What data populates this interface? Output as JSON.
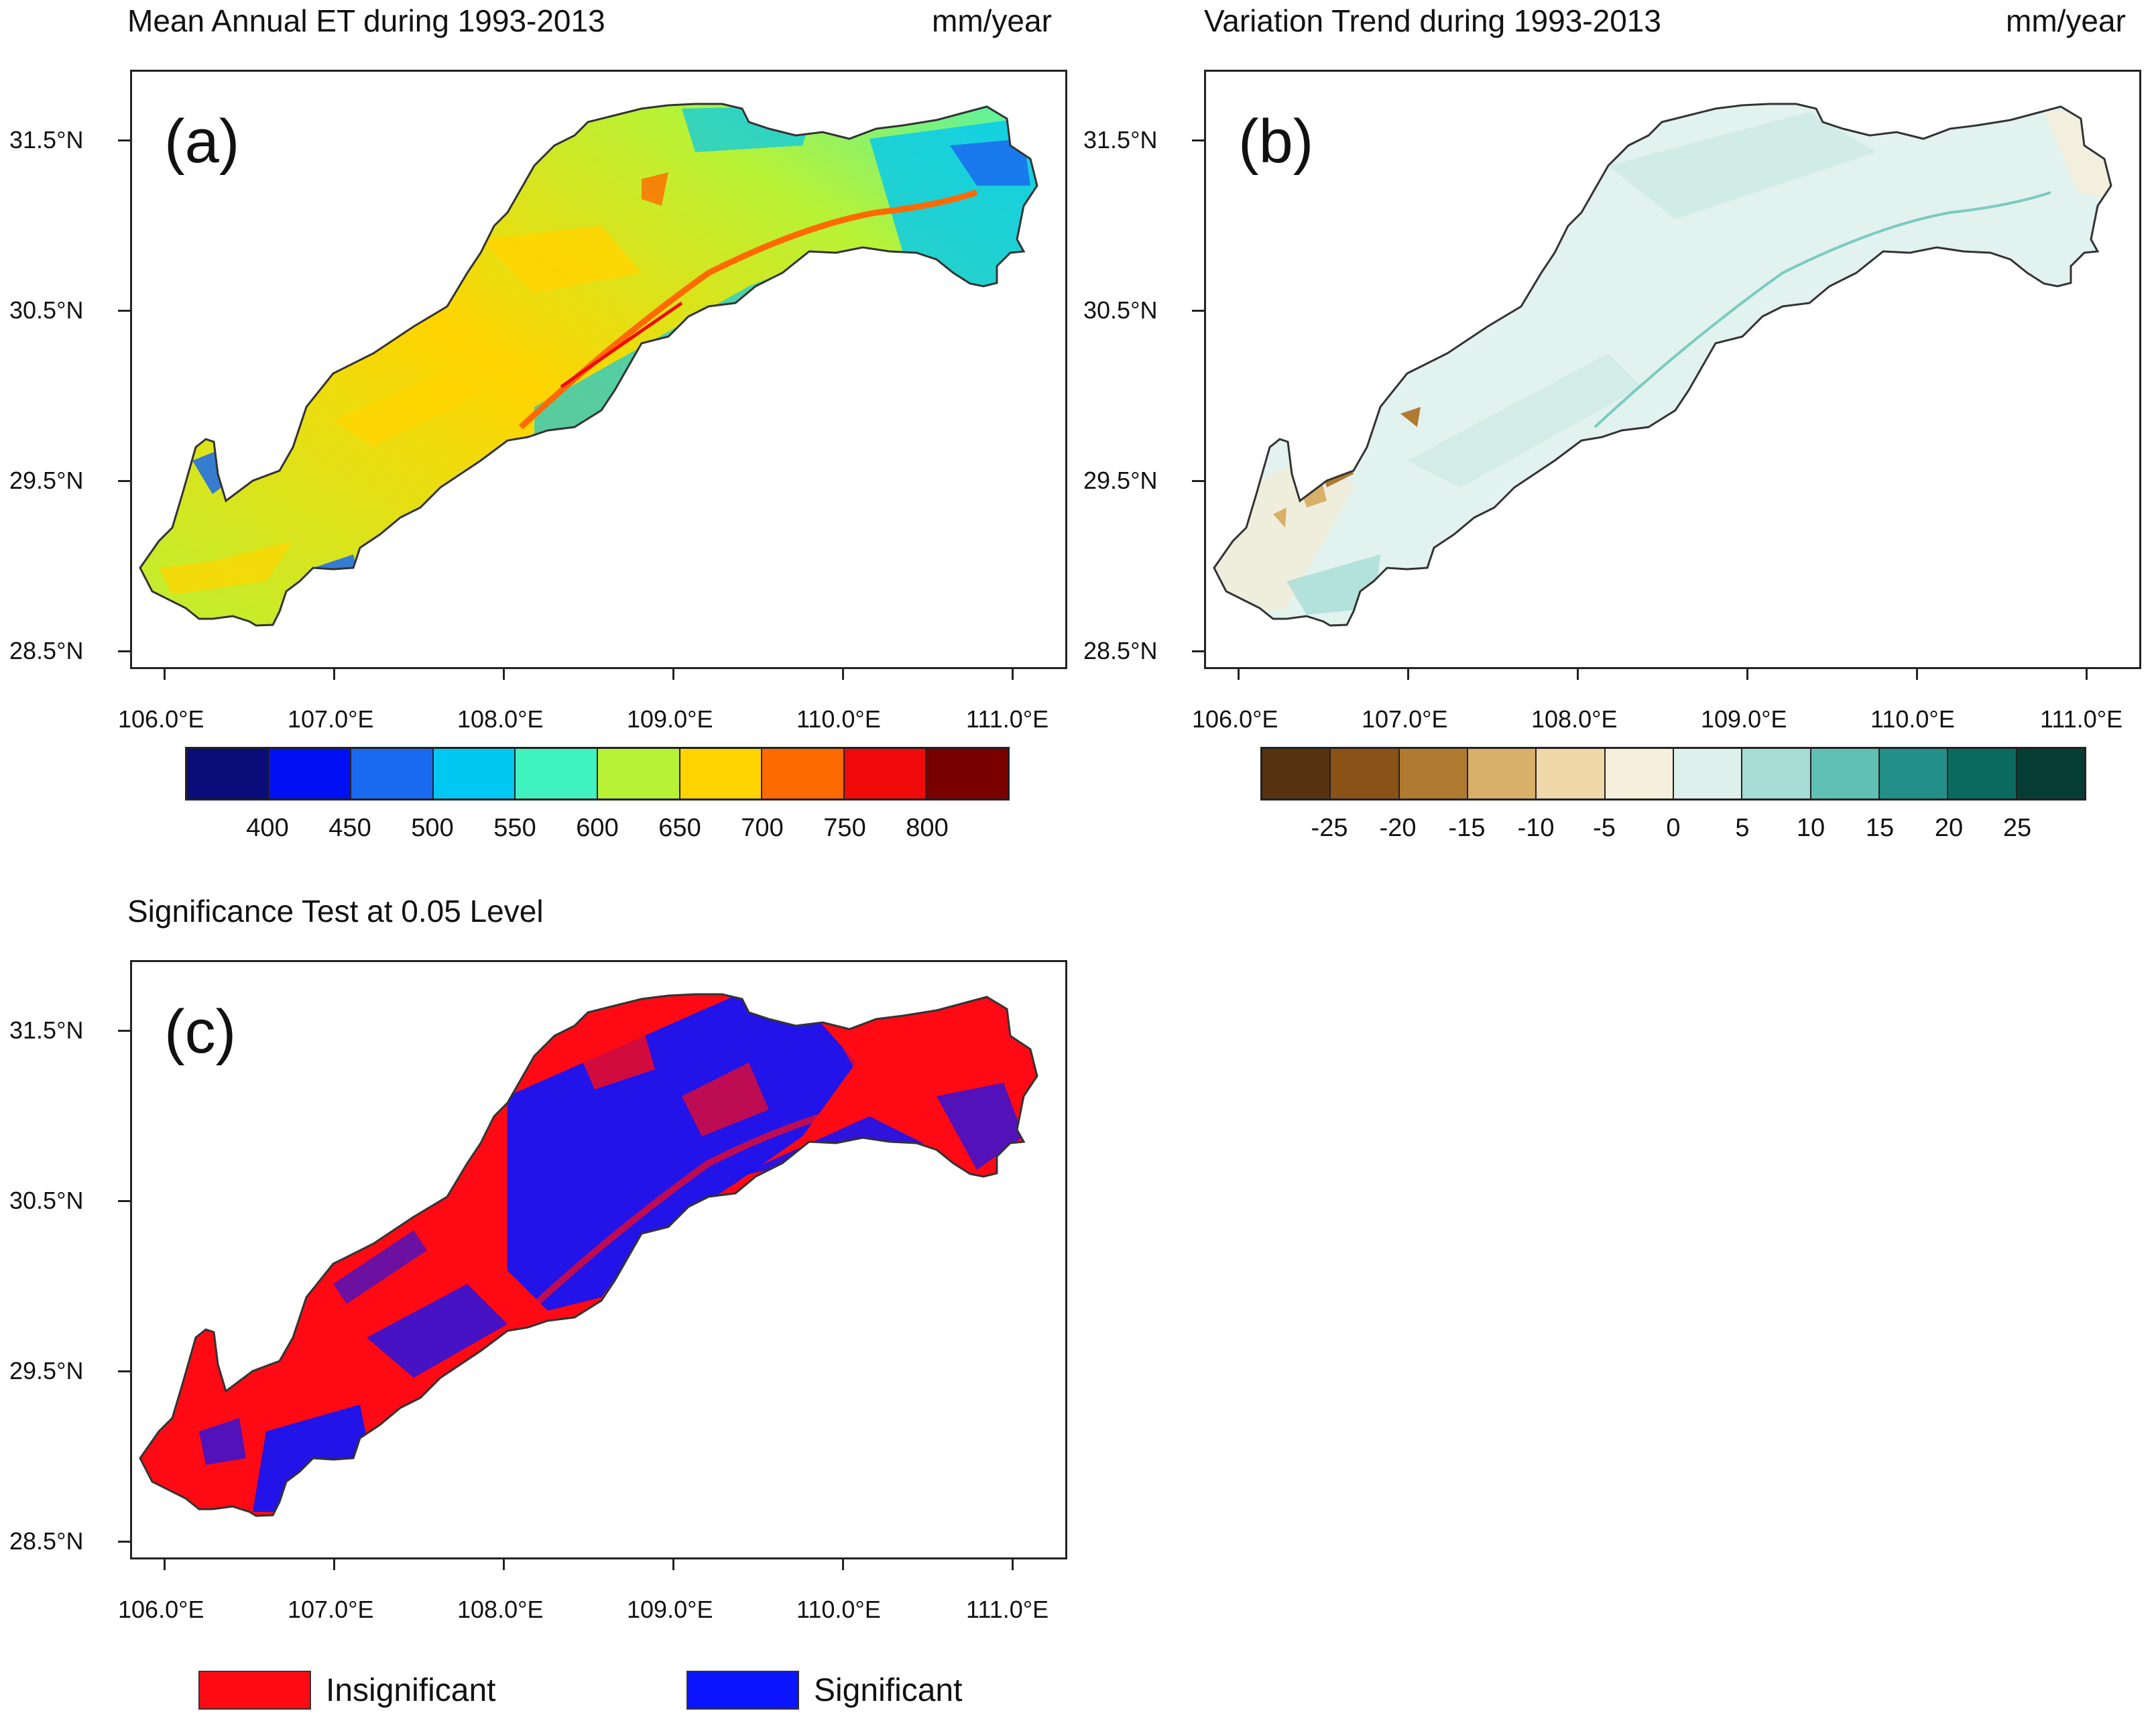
{
  "panels": {
    "a": {
      "label": "(a)",
      "title": "Mean Annual ET during 1993-2013",
      "units": "mm/year"
    },
    "b": {
      "label": "(b)",
      "title": "Variation Trend during 1993-2013",
      "units": "mm/year"
    },
    "c": {
      "label": "(c)",
      "title": "Significance Test at 0.05 Level"
    }
  },
  "axes": {
    "lat_ticks": [
      "31.5°N",
      "30.5°N",
      "29.5°N",
      "28.5°N"
    ],
    "lon_ticks": [
      "106.0°E",
      "107.0°E",
      "108.0°E",
      "109.0°E",
      "110.0°E",
      "111.0°E"
    ]
  },
  "colorbar_a": {
    "labels": [
      "400",
      "450",
      "500",
      "550",
      "600",
      "650",
      "700",
      "750",
      "800"
    ],
    "colors": [
      "#0a0c7a",
      "#0010f5",
      "#1a6af0",
      "#00c8f2",
      "#3ff2c0",
      "#b8f236",
      "#ffd400",
      "#ff6a00",
      "#f00a0a",
      "#7a0000"
    ]
  },
  "colorbar_b": {
    "labels": [
      "-25",
      "-20",
      "-15",
      "-10",
      "-5",
      "0",
      "5",
      "10",
      "15",
      "20",
      "25"
    ],
    "colors": [
      "#573210",
      "#8a5216",
      "#b07a30",
      "#d8b06a",
      "#efd9a8",
      "#f5efdc",
      "#ddf0ec",
      "#a6ddd6",
      "#60c0b4",
      "#229088",
      "#0a6a60",
      "#053c34"
    ]
  },
  "legend_c": {
    "items": [
      {
        "label": "Insignificant",
        "color": "#ff0a14"
      },
      {
        "label": "Significant",
        "color": "#0a14ff"
      }
    ]
  }
}
